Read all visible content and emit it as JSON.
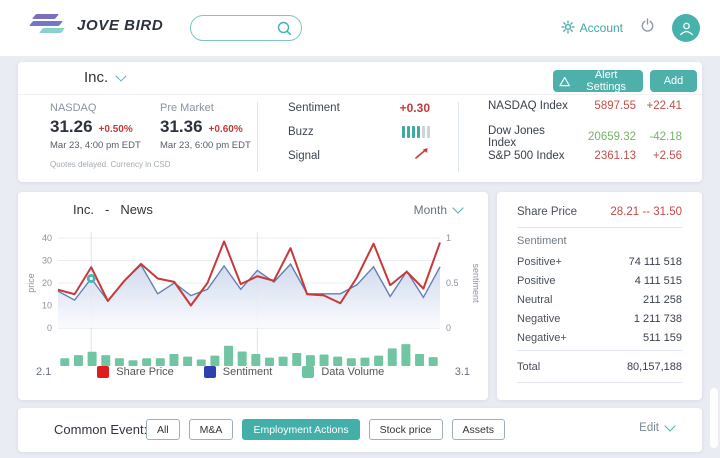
{
  "header": {
    "logo_text": "JOVE BIRD",
    "search_placeholder": "",
    "account_label": "Account"
  },
  "stock_card": {
    "company": "Inc.",
    "alert_settings_label": "Alert Settings",
    "add_label": "Add",
    "nasdaq": {
      "label": "NASDAQ",
      "price": "31.26",
      "change": "+0.50%",
      "time": "Mar 23, 4:00 pm  EDT"
    },
    "premarket": {
      "label": "Pre Market",
      "price": "31.36",
      "change": "+0.60%",
      "time": "Mar 23, 6:00 pm  EDT"
    },
    "disclaimer": "Quotes delayed. Currency in CSD",
    "metrics": {
      "sentiment_label": "Sentiment",
      "sentiment_value": "+0.30",
      "buzz_label": "Buzz",
      "buzz_level": 4,
      "buzz_total": 6,
      "signal_label": "Signal",
      "signal_direction": "up"
    },
    "indices": [
      {
        "name": "NASDAQ Index",
        "value": "5897.55",
        "change": "+22.41",
        "direction": "up"
      },
      {
        "name": "Dow Jones Index",
        "value": "20659.32",
        "change": "-42.18",
        "direction": "down"
      },
      {
        "name": "S&P 500 Index",
        "value": "2361.13",
        "change": "+2.56",
        "direction": "up"
      }
    ]
  },
  "news_card": {
    "title_company": "Inc.",
    "title_separator": "-",
    "title_section": "News",
    "period_label": "Month"
  },
  "chart_data": {
    "type": "mixed",
    "title": "Inc. - News",
    "x_axis": {
      "start_label": "2.1",
      "end_label": "3.1"
    },
    "left_axis": {
      "label": "price",
      "ticks": [
        0,
        10,
        20,
        30,
        40
      ],
      "range": [
        0,
        40
      ]
    },
    "right_axis": {
      "label": "sentiment",
      "ticks": [
        0,
        0.5,
        1
      ],
      "range": [
        0,
        1
      ]
    },
    "vertical_gridlines_at": [
      2,
      12
    ],
    "marker": {
      "series": 1,
      "index": 2
    },
    "series": [
      {
        "name": "Share Price",
        "type": "line",
        "axis": "left",
        "color": "#c8393b",
        "values": [
          17,
          15,
          27,
          12,
          21,
          28.5,
          22,
          20.5,
          10,
          20,
          38.5,
          19.5,
          23,
          21,
          35.5,
          15,
          14.5,
          11,
          22.5,
          37.5,
          19,
          25,
          17.5,
          38
        ]
      },
      {
        "name": "Sentiment",
        "type": "line",
        "axis": "right",
        "color": "#6080b3",
        "area": true,
        "values": [
          0.41,
          0.31,
          0.55,
          0.3,
          0.53,
          0.7,
          0.38,
          0.5,
          0.36,
          0.43,
          0.69,
          0.43,
          0.64,
          0.51,
          0.71,
          0.38,
          0.38,
          0.38,
          0.48,
          0.68,
          0.35,
          0.63,
          0.34,
          0.68
        ]
      },
      {
        "name": "Data Volume",
        "type": "bar",
        "color": "#72c5a2",
        "values": [
          30,
          42,
          55,
          42,
          30,
          22,
          30,
          30,
          46,
          36,
          25,
          40,
          78,
          56,
          46,
          32,
          36,
          50,
          42,
          44,
          36,
          30,
          32,
          40,
          68,
          84,
          46,
          34
        ]
      }
    ],
    "legend": [
      {
        "label": "Share Price",
        "color": "#e01d1d"
      },
      {
        "label": "Sentiment",
        "color": "#2c41ad"
      },
      {
        "label": "Data Volume",
        "color": "#6cc4a1"
      }
    ]
  },
  "stats_card": {
    "share_price_label": "Share Price",
    "share_price_range": "28.21 -- 31.50",
    "sentiment_label": "Sentiment",
    "rows": [
      {
        "label": "Positive+",
        "value": "74 111 518"
      },
      {
        "label": "Positive",
        "value": "4 111 515"
      },
      {
        "label": "Neutral",
        "value": "211 258"
      },
      {
        "label": "Negative",
        "value": "1 211 738"
      },
      {
        "label": "Negative+",
        "value": "511 159"
      }
    ],
    "total_label": "Total",
    "total_value": "80,157,188"
  },
  "event_bar": {
    "label": "Common Event:",
    "buttons": [
      {
        "label": "All",
        "active": false
      },
      {
        "label": "M&A",
        "active": false
      },
      {
        "label": "Employment Actions",
        "active": true
      },
      {
        "label": "Stock price",
        "active": false
      },
      {
        "label": "Assets",
        "active": false
      }
    ],
    "edit_label": "Edit"
  },
  "colors": {
    "accent_teal": "#45b0ab",
    "up_red": "#c0504a",
    "down_green": "#76b266",
    "background": "#eaecf4"
  }
}
